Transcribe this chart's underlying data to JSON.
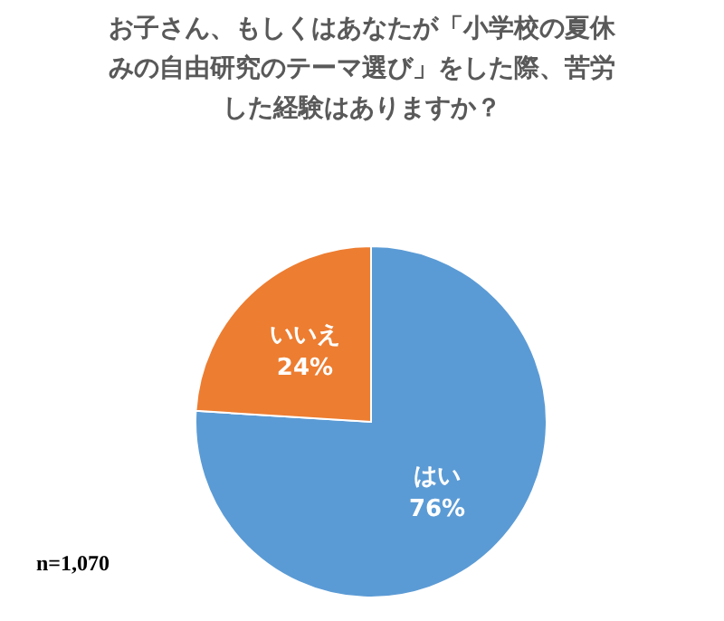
{
  "chart_data": {
    "type": "pie",
    "title": "お子さん、もしくはあなたが「小学校の夏休みの自由研究のテーマ選び」をした際、苦労した経験はありますか？",
    "categories": [
      "はい",
      "いいえ"
    ],
    "values": [
      76,
      24
    ],
    "colors": [
      "#5b9bd5",
      "#ed7d31"
    ],
    "value_labels": [
      "76%",
      "24%"
    ],
    "legend": false,
    "annotations": [
      "n=1,070"
    ]
  }
}
